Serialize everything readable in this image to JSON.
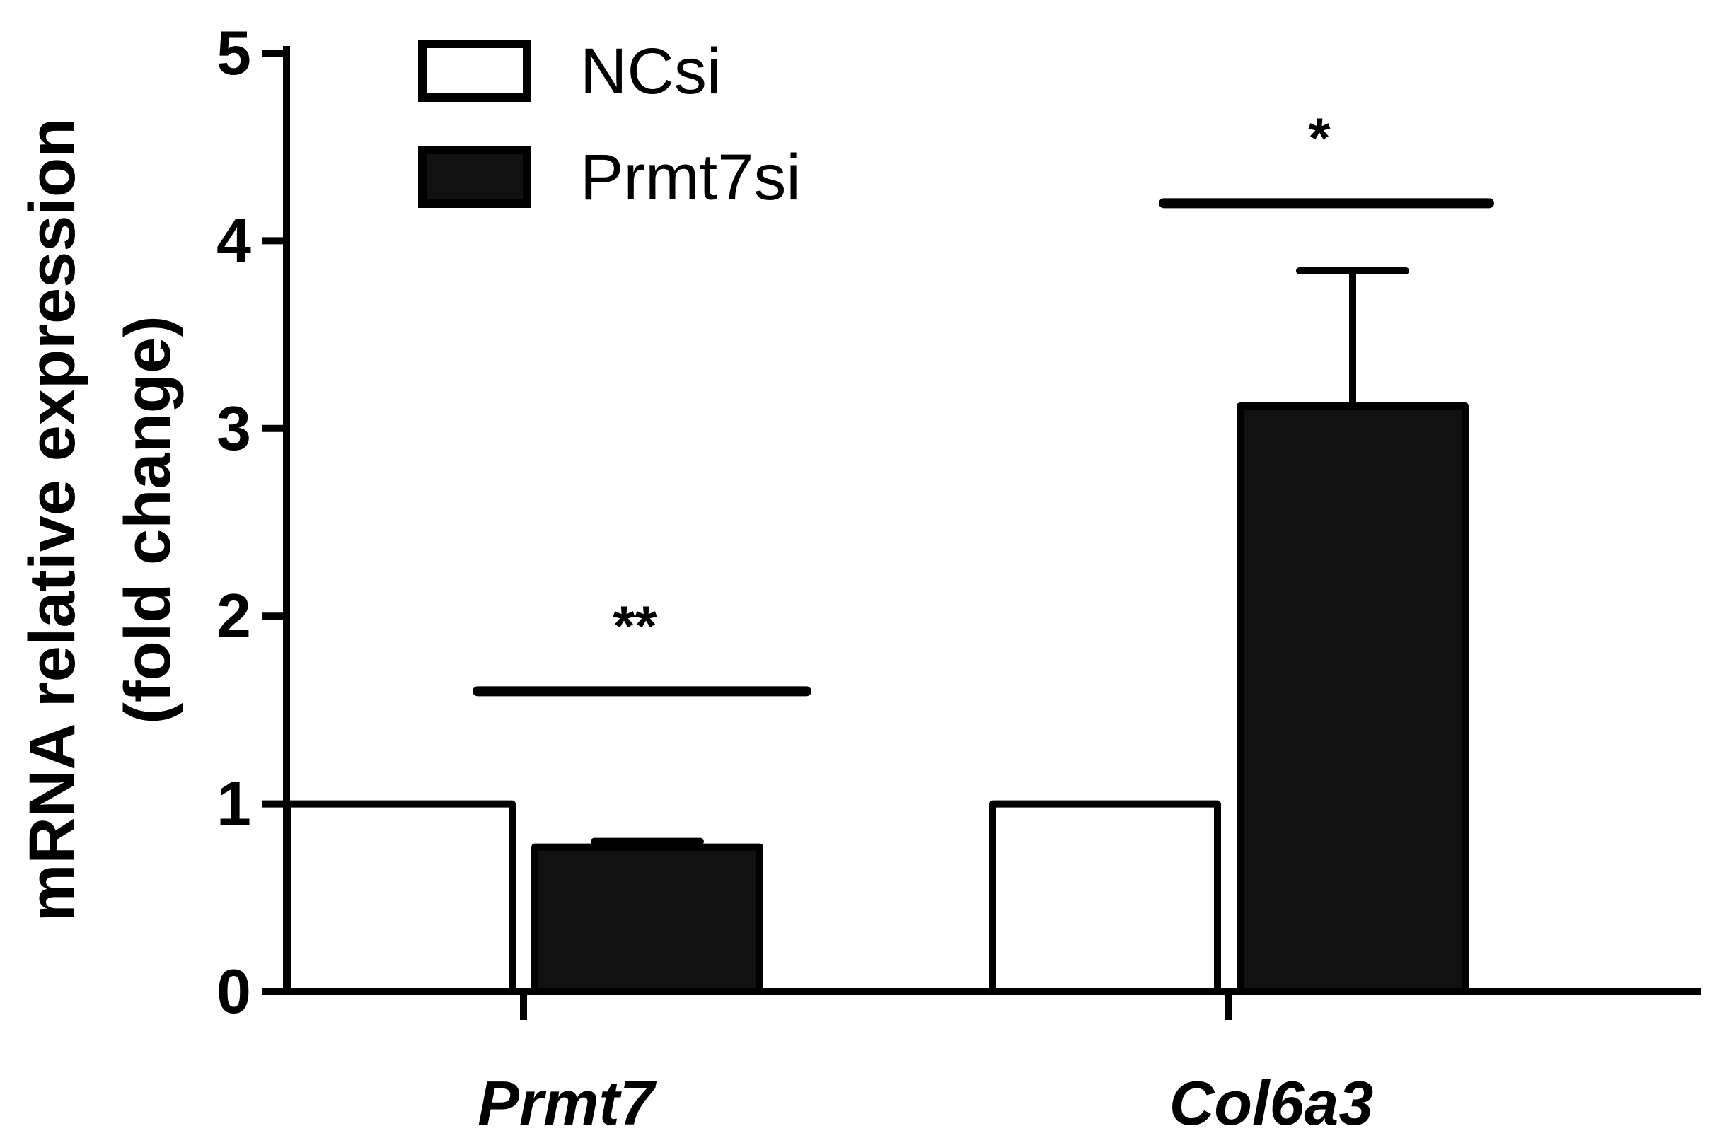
{
  "chart_data": {
    "type": "bar",
    "categories": [
      "Prmt7",
      "Col6a3"
    ],
    "series": [
      {
        "name": "NCsi",
        "values": [
          1.0,
          1.0
        ],
        "errors": [
          0,
          0
        ],
        "fill": "#ffffff"
      },
      {
        "name": "Prmt7si",
        "values": [
          0.77,
          3.12
        ],
        "errors": [
          0.03,
          0.72
        ],
        "fill": "#111111"
      }
    ],
    "ylabel_line1": "mRNA relative expression",
    "ylabel_line2": "(fold change)",
    "ylim": [
      0,
      5
    ],
    "yticks": [
      "0",
      "1",
      "2",
      "3",
      "4",
      "5"
    ],
    "significance": [
      {
        "category": "Prmt7",
        "label": "**",
        "y": 1.6
      },
      {
        "category": "Col6a3",
        "label": "*",
        "y": 4.2
      }
    ],
    "legend_position": "top-left",
    "grid": false
  }
}
